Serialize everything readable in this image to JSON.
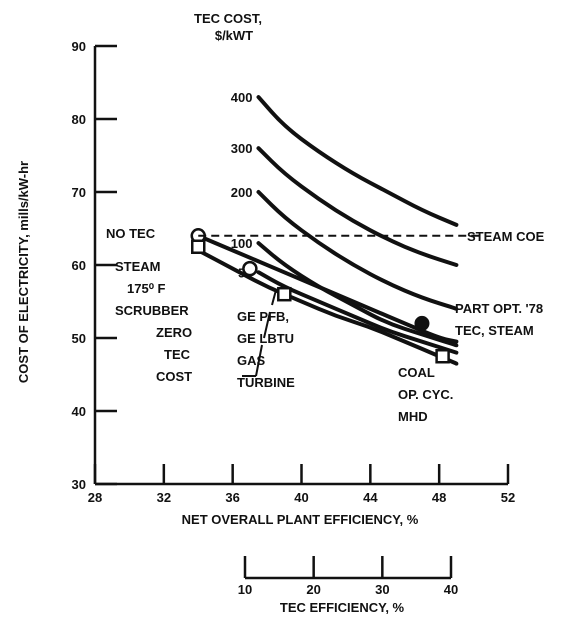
{
  "chart_data": {
    "type": "line",
    "title": "",
    "xlabel": "NET OVERALL PLANT EFFICIENCY, %",
    "ylabel": "COST OF ELECTRICITY, mills/kW-hr",
    "x_ticks": [
      28,
      32,
      36,
      40,
      44,
      48,
      52
    ],
    "y_ticks": [
      30,
      40,
      50,
      60,
      70,
      80,
      90
    ],
    "xlim": [
      28,
      52
    ],
    "ylim": [
      30,
      90
    ],
    "secondary_x_axis": {
      "label": "TEC EFFICIENCY, %",
      "ticks": [
        10,
        20,
        30,
        40
      ],
      "range": [
        10,
        40
      ]
    },
    "family_label_line1": "TEC COST,",
    "family_label_line2": "$/kWT",
    "series": [
      {
        "name": "400",
        "x": [
          37.5,
          39,
          41,
          43,
          45,
          47,
          49
        ],
        "y": [
          83,
          79,
          75.5,
          72.5,
          70,
          67.5,
          65.5
        ]
      },
      {
        "name": "300",
        "x": [
          37.5,
          39,
          41,
          43,
          45,
          47,
          49
        ],
        "y": [
          76,
          72.5,
          69,
          66,
          63.5,
          61.5,
          60
        ]
      },
      {
        "name": "200",
        "x": [
          37.5,
          39,
          41,
          43,
          45,
          47,
          49
        ],
        "y": [
          70,
          66.5,
          63,
          60,
          57.5,
          55.5,
          54
        ]
      },
      {
        "name": "100",
        "x": [
          37.5,
          39,
          41,
          43,
          45,
          47,
          49
        ],
        "y": [
          63,
          60,
          57,
          54.5,
          52,
          50.5,
          49
        ]
      },
      {
        "name": "50",
        "x": [
          37.5,
          39,
          41,
          43,
          45,
          47,
          49
        ],
        "y": [
          59,
          57,
          55,
          53,
          51,
          49.5,
          48
        ]
      },
      {
        "name": "ZERO TEC COST",
        "x": [
          34,
          36,
          38,
          40,
          42,
          44,
          46,
          48,
          49
        ],
        "y": [
          64,
          62,
          60,
          58,
          56,
          54,
          52,
          50,
          49.5
        ]
      },
      {
        "name": "",
        "x": [
          34,
          36,
          38,
          40,
          42,
          44,
          46,
          48,
          49
        ],
        "y": [
          62,
          59.5,
          57,
          55,
          53,
          51.5,
          49.5,
          47.5,
          46.5
        ]
      }
    ],
    "steam_coe": {
      "label": "STEAM COE",
      "y": 64,
      "x_start": 34,
      "x_end": 50.5
    },
    "points": [
      {
        "label": "NO TEC",
        "x": 34,
        "y": 64,
        "marker": "circle"
      },
      {
        "label": "",
        "x": 34,
        "y": 62.5,
        "marker": "square"
      },
      {
        "label": "",
        "x": 37,
        "y": 59.5,
        "marker": "circle"
      },
      {
        "label": "",
        "x": 39,
        "y": 56,
        "marker": "square"
      },
      {
        "label": "",
        "x": 47,
        "y": 52,
        "marker": "filled-circle"
      },
      {
        "label": "",
        "x": 48.2,
        "y": 47.5,
        "marker": "square"
      }
    ],
    "annotations": {
      "no_tec": "NO TEC",
      "steam_coe": "STEAM COE",
      "steam_scrubber": [
        "STEAM",
        "175⁰ F",
        "SCRUBBER"
      ],
      "zero_tec_cost": [
        "ZERO",
        "TEC",
        "COST"
      ],
      "ge_pfb": [
        "GE PFB,",
        "GE LBTU",
        "GAS",
        "TURBINE"
      ],
      "part_opt": [
        "PART OPT. '78",
        "TEC, STEAM"
      ],
      "coal_mhd": [
        "COAL",
        "OP. CYC.",
        "MHD"
      ]
    },
    "grid": false
  }
}
